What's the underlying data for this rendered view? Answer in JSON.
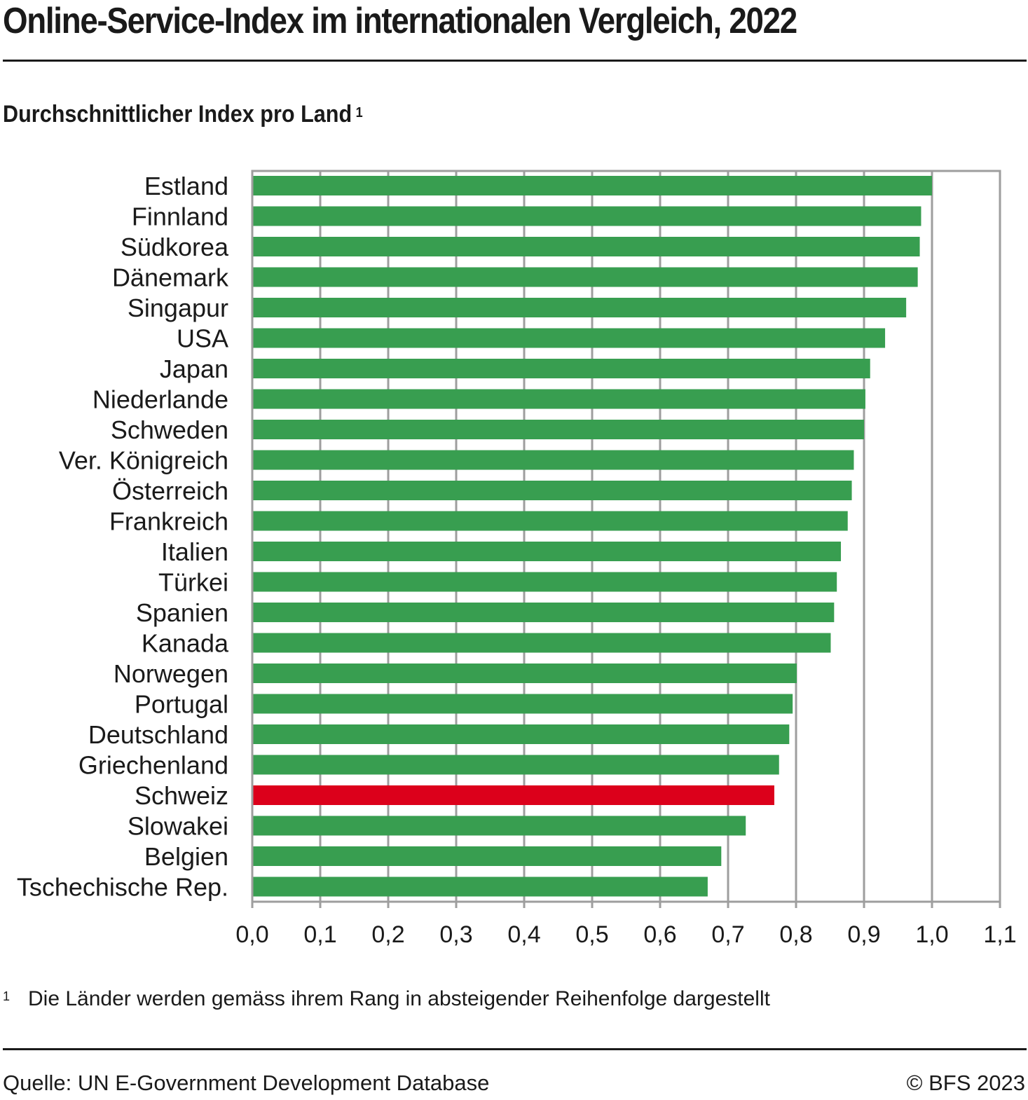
{
  "header": {
    "title": "Online-Service-Index im internationalen Vergleich, 2022",
    "subtitle": "Durchschnittlicher Index pro Land",
    "subtitle_footnote_mark": "1"
  },
  "footer": {
    "footnote_mark": "1",
    "footnote_text": "Die Länder werden gemäss ihrem Rang in absteigender Reihenfolge dargestellt",
    "source": "Quelle: UN E-Government Development Database",
    "copyright": "© BFS 2023"
  },
  "colors": {
    "bar_default": "#389e50",
    "bar_highlight": "#dc001b",
    "grid": "#9e9e9e",
    "text": "#1a1a1a"
  },
  "chart_data": {
    "type": "bar",
    "orientation": "horizontal",
    "title": "Online-Service-Index im internationalen Vergleich, 2022",
    "subtitle": "Durchschnittlicher Index pro Land",
    "xlabel": "",
    "ylabel": "",
    "xlim": [
      0,
      1.1
    ],
    "x_ticks": [
      0.0,
      0.1,
      0.2,
      0.3,
      0.4,
      0.5,
      0.6,
      0.7,
      0.8,
      0.9,
      1.0,
      1.1
    ],
    "x_tick_labels": [
      "0,0",
      "0,1",
      "0,2",
      "0,3",
      "0,4",
      "0,5",
      "0,6",
      "0,7",
      "0,8",
      "0,9",
      "1,0",
      "1,1"
    ],
    "grid": true,
    "highlight": "Schweiz",
    "categories": [
      "Estland",
      "Finnland",
      "Südkorea",
      "Dänemark",
      "Singapur",
      "USA",
      "Japan",
      "Niederlande",
      "Schweden",
      "Ver. Königreich",
      "Österreich",
      "Frankreich",
      "Italien",
      "Türkei",
      "Spanien",
      "Kanada",
      "Norwegen",
      "Portugal",
      "Deutschland",
      "Griechenland",
      "Schweiz",
      "Slowakei",
      "Belgien",
      "Tschechische Rep."
    ],
    "values": [
      1.0,
      0.984,
      0.982,
      0.979,
      0.962,
      0.931,
      0.909,
      0.902,
      0.9,
      0.885,
      0.882,
      0.876,
      0.866,
      0.86,
      0.856,
      0.851,
      0.801,
      0.795,
      0.79,
      0.775,
      0.768,
      0.726,
      0.69,
      0.67
    ]
  }
}
